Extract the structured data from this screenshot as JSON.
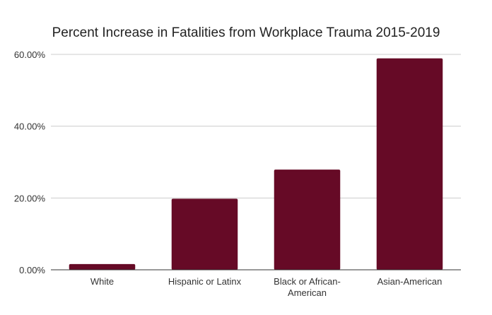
{
  "chart_data": {
    "type": "bar",
    "title": "Percent Increase in Fatalities from Workplace Trauma 2015-2019",
    "xlabel": "",
    "ylabel": "",
    "categories": [
      "White",
      "Hispanic or Latinx",
      "Black or African-American",
      "Asian-American"
    ],
    "category_label_lines": [
      [
        "White"
      ],
      [
        "Hispanic or Latinx"
      ],
      [
        "Black or African-",
        "American"
      ],
      [
        "Asian-American"
      ]
    ],
    "values": [
      1.6,
      19.8,
      27.9,
      58.9
    ],
    "ylim": [
      0,
      60
    ],
    "yticks": [
      0,
      20,
      40,
      60
    ],
    "ytick_labels": [
      "0.00%",
      "20.00%",
      "40.00%",
      "60.00%"
    ],
    "grid": true,
    "legend": "none",
    "bar_color": "#660a26"
  }
}
